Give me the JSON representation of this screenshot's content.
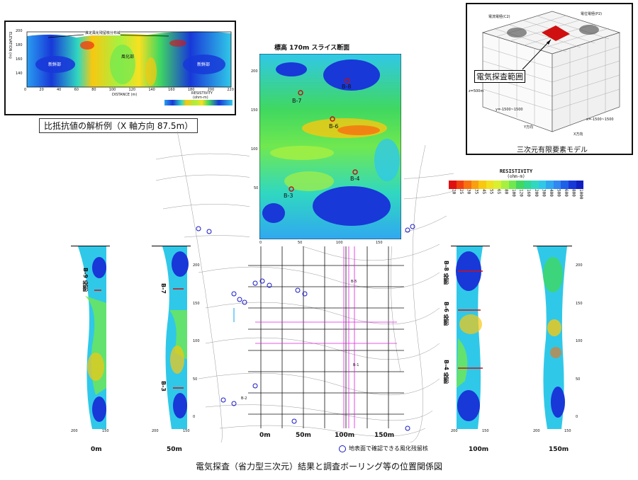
{
  "top_left": {
    "ylabel": "ELEVATION (m)",
    "xlabel": "DISTANCE (m)",
    "yticks": [
      "200",
      "180",
      "160",
      "140"
    ],
    "xticks": [
      "0",
      "20",
      "40",
      "60",
      "80",
      "100",
      "120",
      "140",
      "160",
      "180",
      "200",
      "220"
    ],
    "annotation": "推定風化残留核分布域",
    "region_left": "新鮮部",
    "region_mid": "風化部",
    "region_right": "新鮮部",
    "legend_title": "RESISTIVITY",
    "legend_unit": "(ohm-m)",
    "caption": "比抵抗値の解析例（X 軸方向 87.5m）"
  },
  "top_right": {
    "electrode_c2": "電流電極(C2)",
    "electrode_p2": "電位電極(P2)",
    "survey_range": "電気探査範囲",
    "axis_z": "z=500m",
    "axis_y": "y=-1500~1500",
    "axis_x": "x=-1500~1500",
    "dir_y": "Y方向",
    "dir_x": "X方向",
    "caption": "三次元有限要素モデル"
  },
  "slice": {
    "title": "標高 170m スライス断面",
    "yticks": [
      "200",
      "150",
      "100",
      "50"
    ],
    "xticks": [
      "0",
      "50",
      "100",
      "150"
    ],
    "boreholes": [
      {
        "name": "B-8"
      },
      {
        "name": "B-7"
      },
      {
        "name": "B-6"
      },
      {
        "name": "B-4"
      },
      {
        "name": "B-3"
      }
    ]
  },
  "resistivity_legend": {
    "title": "RESISTIVITY",
    "unit": "(ohm-m)",
    "labels": [
      "20",
      "25",
      "30",
      "35",
      "45",
      "55",
      "65",
      "80",
      "100",
      "120",
      "160",
      "200",
      "300",
      "400",
      "500",
      "600",
      "800",
      "1000"
    ],
    "colors": [
      "#e01010",
      "#f04010",
      "#f87010",
      "#f8a010",
      "#f8c810",
      "#f0e020",
      "#d8f030",
      "#a8f040",
      "#70e850",
      "#40d860",
      "#30d890",
      "#30d8c0",
      "#30c8e8",
      "#30a8f0",
      "#3088f0",
      "#2060e8",
      "#1838d8",
      "#1020c0"
    ]
  },
  "side_sections": {
    "left1": {
      "label": "B-9 投影",
      "xticks": [
        "200",
        "150"
      ],
      "bottom": "0m"
    },
    "left2": {
      "label_top": "B-7",
      "label_bottom": "B-3",
      "xticks": [
        "200",
        "150"
      ],
      "bottom": "50m"
    },
    "right1": {
      "label_top": "B-8 投影",
      "label_mid": "B-6 投影",
      "label_bottom": "B-4 投影",
      "xticks": [
        "200",
        "150"
      ],
      "bottom": "100m"
    },
    "right2": {
      "xticks": [
        "200",
        "150"
      ],
      "bottom": "150m"
    },
    "yticks": [
      "200",
      "150",
      "100",
      "50",
      "0"
    ]
  },
  "map": {
    "axis_labels": [
      "0m",
      "50m",
      "100m",
      "150m"
    ],
    "legend_text": "地表面で確認できる風化残留核",
    "sample_labels": [
      "B-2",
      "B-5",
      "B-1"
    ]
  },
  "main_caption": "電気探査（省力型三次元）結果と調査ボーリング等の位置関係図"
}
